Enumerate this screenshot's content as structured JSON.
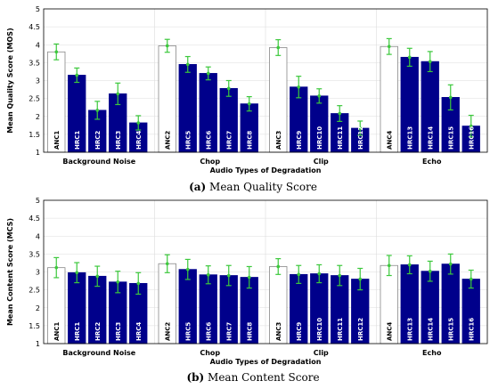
{
  "colors": {
    "anchor_fill": "#ffffff",
    "hrc_fill": "#00008b",
    "error_bar": "#3cc83c",
    "bar_edge": "#000000"
  },
  "chart_data": [
    {
      "type": "bar",
      "caption": {
        "letter": "(a)",
        "text": "Mean Quality Score"
      },
      "ylabel": "Mean Quality Score (MOS)",
      "xlabel": "Audio Types of Degradation",
      "ylim": [
        1,
        5
      ],
      "yticks": [
        "1",
        "1.5",
        "2",
        "2.5",
        "3",
        "3.5",
        "4",
        "4.5",
        "5"
      ],
      "grid": true,
      "groups": [
        {
          "name": "Background Noise",
          "labels": [
            "ANC1",
            "HRC1",
            "HRC2",
            "HRC3",
            "HRC4"
          ],
          "values": [
            3.8,
            3.15,
            2.17,
            2.63,
            1.82
          ],
          "errors": [
            0.22,
            0.2,
            0.25,
            0.3,
            0.2
          ]
        },
        {
          "name": "Chop",
          "labels": [
            "ANC2",
            "HRC5",
            "HRC6",
            "HRC7",
            "HRC8"
          ],
          "values": [
            3.97,
            3.45,
            3.2,
            2.78,
            2.35
          ],
          "errors": [
            0.18,
            0.22,
            0.18,
            0.22,
            0.2
          ]
        },
        {
          "name": "Clip",
          "labels": [
            "ANC3",
            "HRC9",
            "HRC10",
            "HRC11",
            "HRC12"
          ],
          "values": [
            3.92,
            2.82,
            2.57,
            2.08,
            1.67
          ],
          "errors": [
            0.22,
            0.3,
            0.2,
            0.22,
            0.2
          ]
        },
        {
          "name": "Echo",
          "labels": [
            "ANC4",
            "HRC13",
            "HRC14",
            "HRC15",
            "HRC16"
          ],
          "values": [
            3.95,
            3.65,
            3.53,
            2.53,
            1.73
          ],
          "errors": [
            0.22,
            0.25,
            0.28,
            0.35,
            0.3
          ]
        }
      ]
    },
    {
      "type": "bar",
      "caption": {
        "letter": "(b)",
        "text": "Mean Content Score"
      },
      "ylabel": "Mean Content Score (MCS)",
      "xlabel": "Audio Types of Degradation",
      "ylim": [
        1,
        5
      ],
      "yticks": [
        "1",
        "1.5",
        "2",
        "2.5",
        "3",
        "3.5",
        "4",
        "4.5",
        "5"
      ],
      "grid": true,
      "groups": [
        {
          "name": "Background Noise",
          "labels": [
            "ANC1",
            "HRC1",
            "HRC2",
            "HRC3",
            "HRC4"
          ],
          "values": [
            3.12,
            2.98,
            2.88,
            2.72,
            2.68
          ],
          "errors": [
            0.28,
            0.28,
            0.28,
            0.3,
            0.3
          ]
        },
        {
          "name": "Chop",
          "labels": [
            "ANC2",
            "HRC5",
            "HRC6",
            "HRC7",
            "HRC8"
          ],
          "values": [
            3.23,
            3.07,
            2.92,
            2.9,
            2.85
          ],
          "errors": [
            0.25,
            0.28,
            0.25,
            0.28,
            0.3
          ]
        },
        {
          "name": "Clip",
          "labels": [
            "ANC3",
            "HRC9",
            "HRC10",
            "HRC11",
            "HRC12"
          ],
          "values": [
            3.15,
            2.93,
            2.95,
            2.9,
            2.8
          ],
          "errors": [
            0.22,
            0.25,
            0.25,
            0.28,
            0.3
          ]
        },
        {
          "name": "Echo",
          "labels": [
            "ANC4",
            "HRC13",
            "HRC14",
            "HRC15",
            "HRC16"
          ],
          "values": [
            3.18,
            3.2,
            3.02,
            3.22,
            2.8
          ],
          "errors": [
            0.28,
            0.25,
            0.28,
            0.28,
            0.25
          ]
        }
      ]
    }
  ]
}
